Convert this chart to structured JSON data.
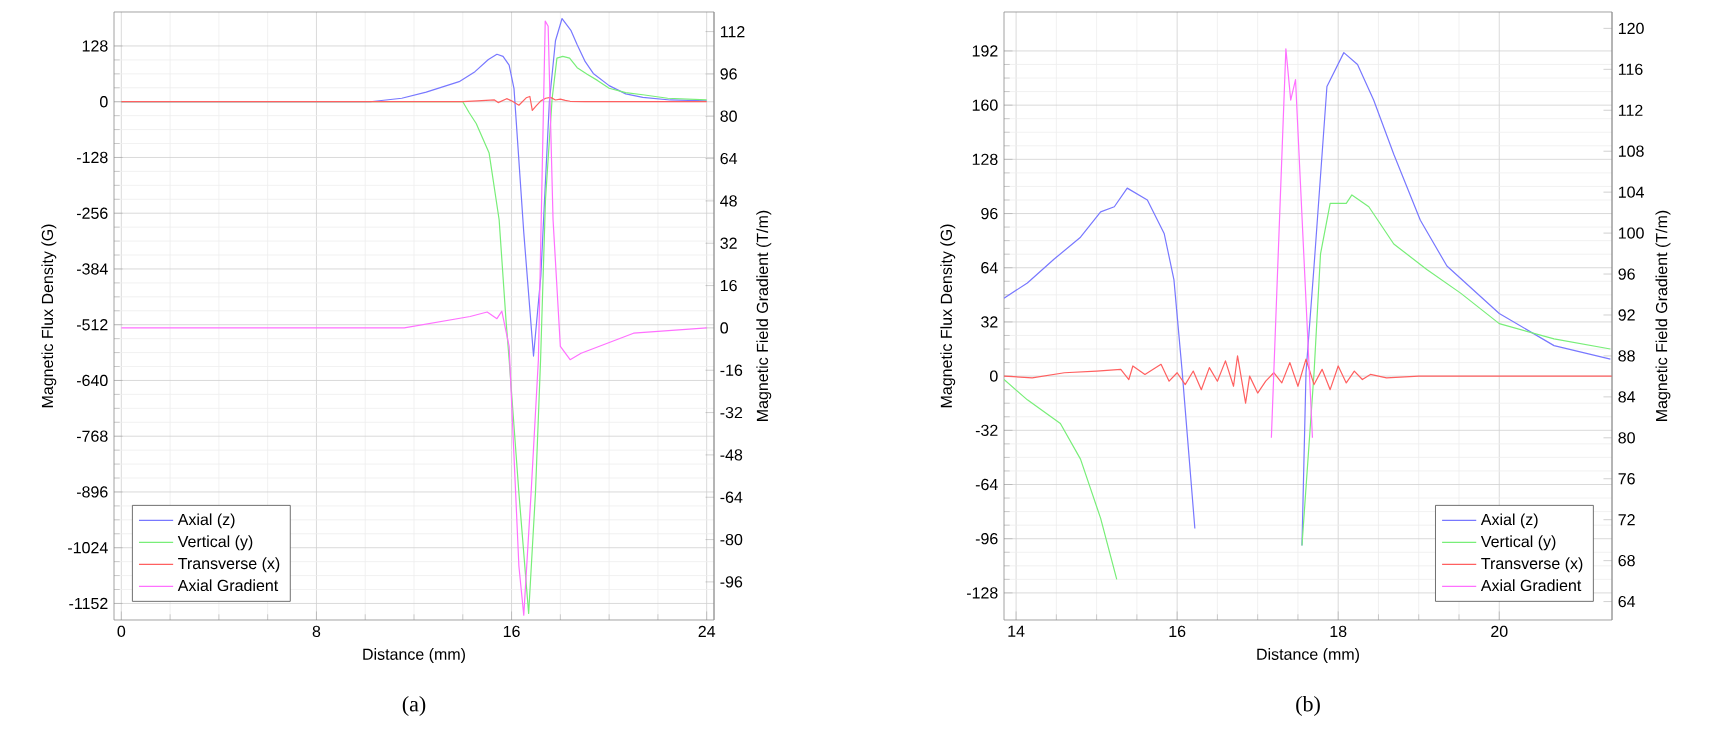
{
  "chart_data": [
    {
      "type": "line",
      "xlabel": "Distance (mm)",
      "ylabel": "Magnetic Flux Density (G)",
      "y2label": "Magnetic Field Gradient (T/m)",
      "xlim": [
        -0.3,
        24.3
      ],
      "ylim": [
        -1190,
        206
      ],
      "y2lim": [
        -110.4,
        119.4
      ],
      "xticks": [
        0,
        8,
        16,
        24
      ],
      "yticks": [
        -1152,
        -1024,
        -896,
        -768,
        -640,
        -512,
        -384,
        -256,
        -128,
        0,
        128
      ],
      "y2ticks": [
        -96,
        -80,
        -64,
        -48,
        -32,
        -16,
        0,
        16,
        32,
        48,
        64,
        80,
        96,
        112
      ],
      "grid": true,
      "legend": "bottom left",
      "annotations": [
        "(a)"
      ],
      "series": [
        {
          "name": "Axial (z)",
          "color": "#7878ff",
          "x": [
            0,
            10.2,
            11.5,
            12.5,
            13.85,
            14.5,
            15.05,
            15.4,
            15.65,
            15.9,
            16.1,
            16.5,
            16.9,
            17.2,
            17.55,
            17.8,
            18.07,
            18.44,
            18.69,
            19.02,
            19.35,
            20,
            20.68,
            21.38,
            22.5,
            24
          ],
          "values": [
            0,
            0,
            8,
            22,
            46,
            69,
            97,
            109,
            104,
            84,
            30,
            -300,
            -584,
            -400,
            0,
            140,
            191,
            163,
            131,
            92,
            65,
            37,
            18,
            10,
            4,
            2
          ]
        },
        {
          "name": "Vertical (y)",
          "color": "#78ee78",
          "x": [
            0,
            14.0,
            14.27,
            14.55,
            15.08,
            15.49,
            15.77,
            15.9,
            16.3,
            16.7,
            16.98,
            17.19,
            17.39,
            17.66,
            17.86,
            18.1,
            18.38,
            18.69,
            19.1,
            19.52,
            20,
            20.68,
            21.38,
            22.4,
            24
          ],
          "values": [
            0,
            0,
            -26,
            -50,
            -118,
            -271,
            -500,
            -592,
            -898,
            -1175,
            -898,
            -592,
            -225,
            5,
            100,
            104,
            100,
            78,
            63,
            49,
            31,
            21,
            16,
            8,
            4
          ]
        },
        {
          "name": "Transverse (x)",
          "color": "#ff6060",
          "x": [
            0,
            14.0,
            14.6,
            15.3,
            15.45,
            15.8,
            16.0,
            16.3,
            16.6,
            16.75,
            16.85,
            17.0,
            17.2,
            17.4,
            17.6,
            17.8,
            18.0,
            18.2,
            18.4,
            19.0,
            20.0,
            24
          ],
          "values": [
            0,
            0,
            2,
            4,
            -2,
            7,
            2,
            -8,
            9,
            12,
            -20,
            -10,
            2,
            8,
            10,
            4,
            6,
            3,
            1,
            0,
            0,
            0
          ]
        },
        {
          "name": "Axial Gradient",
          "color": "#ff70ff",
          "axis": "y2",
          "x": [
            0,
            11.6,
            14.3,
            15.0,
            15.4,
            15.6,
            15.9,
            16.3,
            16.5,
            16.8,
            17.1,
            17.38,
            17.5,
            17.7,
            18.0,
            18.4,
            18.85,
            21.0,
            24
          ],
          "values": [
            0,
            0,
            4.3,
            6,
            3.5,
            6.3,
            -7,
            -90,
            -108.6,
            -62.5,
            -12,
            116,
            114,
            41,
            -7,
            -12,
            -9.6,
            -2,
            0
          ]
        }
      ]
    },
    {
      "type": "line",
      "xlabel": "Distance (mm)",
      "ylabel": "Magnetic Flux Density (G)",
      "y2label": "Magnetic Field Gradient (T/m)",
      "xlim": [
        13.85,
        21.4
      ],
      "ylim": [
        -144,
        215
      ],
      "y2lim": [
        62.2,
        121.6
      ],
      "xticks": [
        14,
        16,
        18,
        20
      ],
      "yticks": [
        -128,
        -96,
        -64,
        -32,
        0,
        32,
        64,
        96,
        128,
        160,
        192
      ],
      "y2ticks": [
        64,
        68,
        72,
        76,
        80,
        84,
        88,
        92,
        96,
        100,
        104,
        108,
        112,
        116,
        120
      ],
      "grid": true,
      "legend": "bottom right",
      "annotations": [
        "(b)"
      ],
      "series": [
        {
          "name": "Axial (z)",
          "color": "#7878ff",
          "x": [
            13.85,
            14.14,
            14.47,
            14.8,
            15.05,
            15.22,
            15.38,
            15.63,
            15.84,
            15.96,
            16.06,
            16.22,
            16.9,
            17.55,
            17.6,
            17.7,
            17.86,
            18.07,
            18.24,
            18.44,
            18.69,
            19.02,
            19.35,
            20,
            20.68,
            21.38
          ],
          "values": [
            46,
            55,
            69,
            82,
            97,
            100,
            111,
            104,
            84,
            57,
            4,
            -90,
            null,
            -100,
            2,
            65,
            171,
            191,
            184,
            163,
            131,
            92,
            65,
            37,
            18,
            10
          ]
        },
        {
          "name": "Vertical (y)",
          "color": "#78ee78",
          "x": [
            13.85,
            14.14,
            14.55,
            14.8,
            15.05,
            15.25,
            16.4,
            17.55,
            17.7,
            17.78,
            17.9,
            18.1,
            18.17,
            18.38,
            18.69,
            19.1,
            19.52,
            20,
            20.68,
            21.38
          ],
          "values": [
            -2,
            -14,
            -28,
            -49,
            -84,
            -120,
            null,
            -100,
            2,
            72,
            102,
            102,
            107,
            100,
            78,
            63,
            49,
            31,
            22,
            16
          ]
        },
        {
          "name": "Transverse (x)",
          "color": "#ff6060",
          "x": [
            13.85,
            14.2,
            14.6,
            15.0,
            15.3,
            15.4,
            15.45,
            15.6,
            15.8,
            15.9,
            16.0,
            16.1,
            16.2,
            16.3,
            16.4,
            16.5,
            16.6,
            16.7,
            16.75,
            16.85,
            16.9,
            17.0,
            17.1,
            17.2,
            17.3,
            17.4,
            17.5,
            17.6,
            17.7,
            17.8,
            17.9,
            18.0,
            18.1,
            18.2,
            18.3,
            18.4,
            18.6,
            19.0,
            20.0,
            21.4
          ],
          "values": [
            0,
            -1,
            2,
            3,
            4,
            -2,
            6,
            1,
            7,
            -3,
            2,
            -5,
            3,
            -8,
            5,
            -3,
            9,
            -6,
            12,
            -16,
            0,
            -10,
            -3,
            2,
            -4,
            8,
            -6,
            10,
            -5,
            4,
            -8,
            6,
            -4,
            3,
            -2,
            1,
            -1,
            0,
            0,
            0
          ]
        },
        {
          "name": "Axial Gradient",
          "color": "#ff70ff",
          "axis": "y2",
          "x": [
            17.17,
            17.35,
            17.41,
            17.47,
            17.53,
            17.68
          ],
          "values": [
            80,
            118,
            113,
            115,
            105,
            80
          ]
        }
      ]
    }
  ]
}
